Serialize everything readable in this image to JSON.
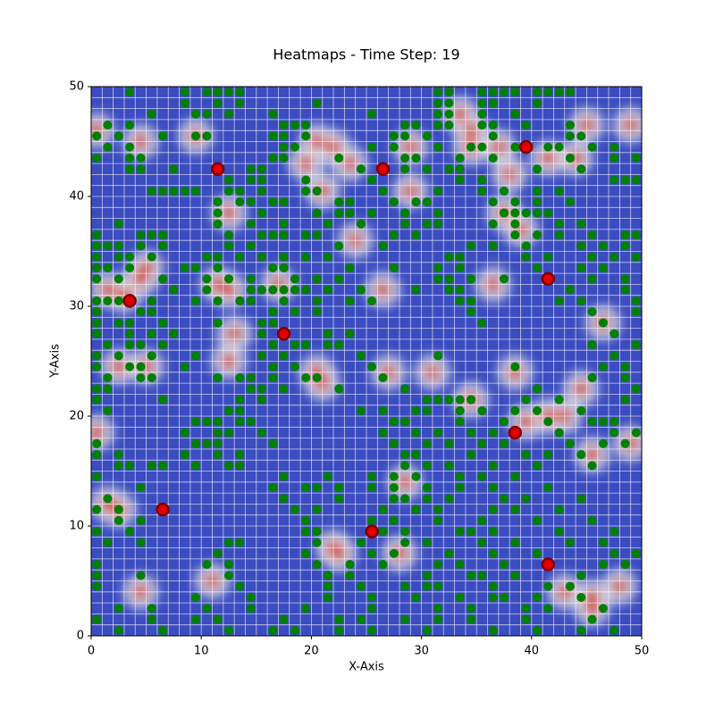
{
  "chart_data": {
    "type": "heatmap",
    "title": "Heatmaps - Time Step: 19",
    "x_label": "X-Axis",
    "y_label": "Y-Axis",
    "xlim": [
      0,
      50
    ],
    "ylim": [
      0,
      50
    ],
    "xticks": [
      0,
      10,
      20,
      30,
      40,
      50
    ],
    "yticks": [
      0,
      10,
      20,
      30,
      40,
      50
    ],
    "grid": true,
    "background_color": "#3b4cc0",
    "hot_color": "#d0473d",
    "hot_cells": [
      [
        0.5,
        46
      ],
      [
        4.5,
        45
      ],
      [
        9.5,
        45.5
      ],
      [
        20.5,
        45
      ],
      [
        22,
        44.5
      ],
      [
        19.5,
        43
      ],
      [
        23.5,
        43
      ],
      [
        29,
        44.5
      ],
      [
        33.5,
        47.5
      ],
      [
        34.5,
        46
      ],
      [
        34.5,
        44.5
      ],
      [
        37,
        44.5
      ],
      [
        38,
        42
      ],
      [
        41.5,
        43.5
      ],
      [
        44,
        43.5
      ],
      [
        45,
        46.5
      ],
      [
        49,
        46.5
      ],
      [
        12.5,
        38.5
      ],
      [
        21,
        40.5
      ],
      [
        24,
        36
      ],
      [
        29,
        40.5
      ],
      [
        37.5,
        38.5
      ],
      [
        39,
        37
      ],
      [
        1.5,
        31.5
      ],
      [
        3,
        31
      ],
      [
        4.5,
        32.5
      ],
      [
        5,
        33.5
      ],
      [
        11.5,
        32
      ],
      [
        12.5,
        31.5
      ],
      [
        17,
        32
      ],
      [
        26.5,
        31.5
      ],
      [
        36.5,
        32
      ],
      [
        46.5,
        28.5
      ],
      [
        13,
        27.5
      ],
      [
        12.5,
        25
      ],
      [
        2.5,
        24.5
      ],
      [
        5,
        24.5
      ],
      [
        20.5,
        24
      ],
      [
        21,
        23
      ],
      [
        27,
        24
      ],
      [
        31,
        24
      ],
      [
        38.5,
        24
      ],
      [
        34.5,
        21.5
      ],
      [
        39.5,
        19.5
      ],
      [
        41.5,
        20
      ],
      [
        43,
        20
      ],
      [
        44.5,
        22.5
      ],
      [
        45.5,
        16.5
      ],
      [
        49,
        17.5
      ],
      [
        1.5,
        12
      ],
      [
        2.5,
        11.5
      ],
      [
        28.5,
        14
      ],
      [
        22,
        8
      ],
      [
        22.5,
        7.5
      ],
      [
        28,
        7.5
      ],
      [
        4.5,
        4
      ],
      [
        11,
        5
      ],
      [
        45.5,
        3.5
      ],
      [
        45.5,
        2.5
      ],
      [
        43,
        4
      ],
      [
        48,
        4.5
      ],
      [
        0.5,
        18.5
      ]
    ],
    "green_color": "#008000",
    "green_points": [
      {
        "y": 49.5,
        "x": [
          3.5,
          8.5,
          10.5,
          11.5,
          12.5,
          13.5,
          31.5,
          32.5,
          35.5,
          36.5,
          37.5,
          38.5,
          40.5,
          41.5,
          42.5,
          43.5
        ]
      },
      {
        "y": 48.5,
        "x": [
          8.5,
          11.5,
          13.5,
          20.5,
          31.5,
          32.5,
          35.5,
          36.5,
          40.5
        ]
      },
      {
        "y": 47.5,
        "x": [
          5.5,
          9.5,
          10.5,
          12.5,
          16.5,
          25.5,
          31.5,
          32.5,
          35.5,
          38.5
        ]
      },
      {
        "y": 46.5,
        "x": [
          1.5,
          3.5,
          17.5,
          18.5,
          19.5,
          28.5,
          29.5,
          31.5,
          32.5,
          35.5,
          36.5,
          39.5,
          43.5
        ]
      },
      {
        "y": 45.5,
        "x": [
          0.5,
          2.5,
          6.5,
          9.5,
          10.5,
          16.5,
          17.5,
          19.5,
          27.5,
          28.5,
          30.5,
          36.5,
          43.5,
          44.5
        ]
      },
      {
        "y": 44.5,
        "x": [
          1.5,
          3.5,
          17.5,
          18.5,
          25.5,
          27.5,
          31.5,
          34.5,
          35.5,
          38.5,
          41.5,
          42.5,
          45.5,
          47.5
        ]
      },
      {
        "y": 43.5,
        "x": [
          0.5,
          3.5,
          4.5,
          16.5,
          17.5,
          22.5,
          28.5,
          29.5,
          33.5,
          36.5,
          43.5,
          47.5,
          49.5
        ]
      },
      {
        "y": 42.5,
        "x": [
          3.5,
          4.5,
          7.5,
          14.5,
          15.5,
          24.5,
          28.5,
          30.5,
          32.5,
          33.5,
          40.5,
          44.5
        ]
      },
      {
        "y": 41.5,
        "x": [
          12.5,
          14.5,
          15.5,
          19.5,
          25.5,
          33.5,
          35.5,
          47.5,
          48.5,
          49.5
        ]
      },
      {
        "y": 40.5,
        "x": [
          5.5,
          6.5,
          7.5,
          8.5,
          9.5,
          12.5,
          13.5,
          15.5,
          19.5,
          20.5,
          26.5,
          31.5,
          35.5,
          37.5,
          40.5,
          42.5
        ]
      },
      {
        "y": 39.5,
        "x": [
          11.5,
          13.5,
          14.5,
          16.5,
          17.5,
          22.5,
          23.5,
          27.5,
          29.5,
          30.5,
          36.5,
          38.5,
          40.5,
          43.5
        ]
      },
      {
        "y": 38.5,
        "x": [
          11.5,
          15.5,
          20.5,
          22.5,
          23.5,
          25.5,
          28.5,
          31.5,
          37.5,
          38.5,
          39.5,
          40.5,
          41.5
        ]
      },
      {
        "y": 37.5,
        "x": [
          2.5,
          11.5,
          14.5,
          17.5,
          21.5,
          24.5,
          28.5,
          30.5,
          31.5,
          36.5,
          38.5,
          42.5,
          44.5
        ]
      },
      {
        "y": 36.5,
        "x": [
          0.5,
          4.5,
          5.5,
          6.5,
          12.5,
          15.5,
          16.5,
          17.5,
          19.5,
          20.5,
          27.5,
          29.5,
          38.5,
          40.5,
          42.5,
          45.5,
          48.5,
          49.5
        ]
      },
      {
        "y": 35.5,
        "x": [
          0.5,
          1.5,
          2.5,
          4.5,
          6.5,
          12.5,
          14.5,
          22.5,
          26.5,
          34.5,
          36.5,
          39.5,
          44.5,
          46.5,
          48.5
        ]
      },
      {
        "y": 34.5,
        "x": [
          0.5,
          2.5,
          3.5,
          5.5,
          10.5,
          11.5,
          13.5,
          15.5,
          17.5,
          19.5,
          21.5,
          32.5,
          33.5,
          39.5,
          41.5,
          45.5,
          47.5,
          49.5
        ]
      },
      {
        "y": 33.5,
        "x": [
          0.5,
          1.5,
          3.5,
          8.5,
          9.5,
          11.5,
          16.5,
          17.5,
          23.5,
          27.5,
          31.5,
          33.5,
          40.5,
          44.5,
          46.5
        ]
      },
      {
        "y": 32.5,
        "x": [
          0.5,
          2.5,
          6.5,
          10.5,
          12.5,
          14.5,
          18.5,
          20.5,
          22.5,
          31.5,
          32.5,
          34.5,
          37.5,
          45.5,
          48.5
        ]
      },
      {
        "y": 31.5,
        "x": [
          7.5,
          10.5,
          14.5,
          15.5,
          16.5,
          17.5,
          18.5,
          19.5,
          21.5,
          24.5,
          29.5,
          32.5,
          33.5,
          43.5,
          48.5
        ]
      },
      {
        "y": 30.5,
        "x": [
          0.5,
          1.5,
          2.5,
          5.5,
          9.5,
          11.5,
          13.5,
          14.5,
          17.5,
          20.5,
          23.5,
          25.5,
          33.5,
          34.5,
          42.5,
          44.5,
          49.5
        ]
      },
      {
        "y": 29.5,
        "x": [
          0.5,
          4.5,
          5.5,
          16.5,
          18.5,
          20.5,
          34.5,
          45.5,
          49.5
        ]
      },
      {
        "y": 28.5,
        "x": [
          0.5,
          2.5,
          3.5,
          6.5,
          11.5,
          15.5,
          16.5,
          35.5,
          46.5
        ]
      },
      {
        "y": 27.5,
        "x": [
          0.5,
          3.5,
          5.5,
          7.5,
          15.5,
          17.5,
          21.5,
          23.5,
          47.5
        ]
      },
      {
        "y": 26.5,
        "x": [
          1.5,
          3.5,
          4.5,
          6.5,
          16.5,
          18.5,
          19.5,
          21.5,
          22.5,
          45.5,
          49.5
        ]
      },
      {
        "y": 25.5,
        "x": [
          0.5,
          2.5,
          5.5,
          9.5,
          15.5,
          17.5,
          24.5,
          31.5,
          47.5
        ]
      },
      {
        "y": 24.5,
        "x": [
          0.5,
          3.5,
          4.5,
          8.5,
          16.5,
          18.5,
          25.5,
          38.5,
          46.5,
          48.5
        ]
      },
      {
        "y": 23.5,
        "x": [
          1.5,
          4.5,
          5.5,
          11.5,
          13.5,
          14.5,
          16.5,
          19.5,
          20.5,
          26.5,
          45.5,
          48.5
        ]
      },
      {
        "y": 22.5,
        "x": [
          0.5,
          1.5,
          14.5,
          15.5,
          17.5,
          22.5,
          28.5,
          40.5,
          49.5
        ]
      },
      {
        "y": 21.5,
        "x": [
          0.5,
          6.5,
          13.5,
          15.5,
          30.5,
          31.5,
          32.5,
          33.5,
          34.5,
          39.5,
          42.5,
          48.5
        ]
      },
      {
        "y": 20.5,
        "x": [
          1.5,
          12.5,
          13.5,
          24.5,
          26.5,
          29.5,
          30.5,
          33.5,
          35.5,
          38.5,
          40.5,
          44.5
        ]
      },
      {
        "y": 19.5,
        "x": [
          9.5,
          10.5,
          11.5,
          13.5,
          14.5,
          27.5,
          28.5,
          33.5,
          37.5,
          41.5,
          45.5,
          46.5,
          47.5
        ]
      },
      {
        "y": 18.5,
        "x": [
          8.5,
          11.5,
          12.5,
          15.5,
          26.5,
          29.5,
          31.5,
          34.5,
          36.5,
          42.5,
          47.5,
          49.5
        ]
      },
      {
        "y": 17.5,
        "x": [
          0.5,
          9.5,
          10.5,
          11.5,
          16.5,
          27.5,
          30.5,
          32.5,
          35.5,
          37.5,
          43.5,
          46.5,
          48.5
        ]
      },
      {
        "y": 16.5,
        "x": [
          0.5,
          2.5,
          8.5,
          11.5,
          13.5,
          28.5,
          29.5,
          34.5,
          39.5,
          41.5,
          44.5
        ]
      },
      {
        "y": 15.5,
        "x": [
          2.5,
          3.5,
          5.5,
          6.5,
          9.5,
          12.5,
          13.5,
          28.5,
          30.5,
          32.5,
          36.5,
          40.5,
          45.5
        ]
      },
      {
        "y": 14.5,
        "x": [
          0.5,
          17.5,
          21.5,
          25.5,
          27.5,
          29.5,
          33.5,
          35.5,
          38.5
        ]
      },
      {
        "y": 13.5,
        "x": [
          4.5,
          16.5,
          19.5,
          20.5,
          22.5,
          25.5,
          27.5,
          30.5,
          33.5,
          36.5,
          41.5
        ]
      },
      {
        "y": 12.5,
        "x": [
          1.5,
          17.5,
          22.5,
          27.5,
          28.5,
          30.5,
          32.5,
          37.5,
          39.5,
          44.5
        ]
      },
      {
        "y": 11.5,
        "x": [
          0.5,
          2.5,
          18.5,
          20.5,
          26.5,
          29.5,
          31.5,
          36.5,
          38.5,
          42.5
        ]
      },
      {
        "y": 10.5,
        "x": [
          2.5,
          4.5,
          19.5,
          25.5,
          27.5,
          31.5,
          35.5,
          40.5,
          45.5
        ]
      },
      {
        "y": 9.5,
        "x": [
          0.5,
          3.5,
          19.5,
          20.5,
          26.5,
          28.5,
          33.5,
          34.5,
          36.5,
          42.5,
          47.5
        ]
      },
      {
        "y": 8.5,
        "x": [
          1.5,
          4.5,
          12.5,
          13.5,
          20.5,
          24.5,
          28.5,
          30.5,
          35.5,
          38.5,
          43.5,
          46.5
        ]
      },
      {
        "y": 7.5,
        "x": [
          11.5,
          19.5,
          25.5,
          27.5,
          32.5,
          36.5,
          40.5,
          47.5,
          49.5
        ]
      },
      {
        "y": 6.5,
        "x": [
          0.5,
          10.5,
          12.5,
          20.5,
          23.5,
          26.5,
          31.5,
          33.5,
          37.5,
          46.5,
          48.5
        ]
      },
      {
        "y": 5.5,
        "x": [
          0.5,
          4.5,
          12.5,
          21.5,
          23.5,
          30.5,
          34.5,
          35.5,
          38.5,
          44.5
        ]
      },
      {
        "y": 4.5,
        "x": [
          0.5,
          13.5,
          21.5,
          24.5,
          28.5,
          30.5,
          31.5,
          36.5,
          41.5,
          43.5
        ]
      },
      {
        "y": 3.5,
        "x": [
          9.5,
          14.5,
          21.5,
          25.5,
          29.5,
          33.5,
          36.5,
          37.5,
          40.5,
          44.5
        ]
      },
      {
        "y": 2.5,
        "x": [
          2.5,
          5.5,
          10.5,
          14.5,
          19.5,
          25.5,
          31.5,
          34.5,
          39.5,
          41.5,
          46.5
        ]
      },
      {
        "y": 1.5,
        "x": [
          0.5,
          5.5,
          9.5,
          11.5,
          17.5,
          22.5,
          24.5,
          28.5,
          31.5,
          34.5,
          39.5,
          45.5
        ]
      },
      {
        "y": 0.5,
        "x": [
          2.5,
          6.5,
          12.5,
          16.5,
          18.5,
          22.5,
          25.5,
          30.5,
          36.5,
          40.5,
          44.5,
          47.5
        ]
      }
    ],
    "red_color": "#e00000",
    "red_points": [
      [
        3.5,
        30.5
      ],
      [
        6.5,
        11.5
      ],
      [
        11.5,
        42.5
      ],
      [
        17.5,
        27.5
      ],
      [
        26.5,
        42.5
      ],
      [
        25.5,
        9.5
      ],
      [
        39.5,
        44.5
      ],
      [
        41.5,
        32.5
      ],
      [
        38.5,
        18.5
      ],
      [
        41.5,
        6.5
      ]
    ]
  }
}
